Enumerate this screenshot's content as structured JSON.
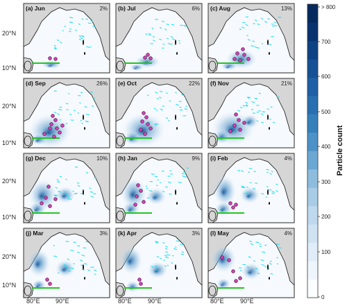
{
  "panels": [
    {
      "label": "(a) Jun",
      "percent": "2%"
    },
    {
      "label": "(b) Jul",
      "percent": "6%"
    },
    {
      "label": "(c) Aug",
      "percent": "13%"
    },
    {
      "label": "(d) Sep",
      "percent": "26%"
    },
    {
      "label": "(e) Oct",
      "percent": "22%"
    },
    {
      "label": "(f) Nov",
      "percent": "21%"
    },
    {
      "label": "(g) Dec",
      "percent": "10%"
    },
    {
      "label": "(h) Jan",
      "percent": "9%"
    },
    {
      "label": "(i) Feb",
      "percent": "4%"
    },
    {
      "label": "(j) Mar",
      "percent": "3%"
    },
    {
      "label": "(k) Apr",
      "percent": "3%"
    },
    {
      "label": "(l) May",
      "percent": "4%"
    }
  ],
  "axes": {
    "y_ticks": [
      "20°N",
      "10°N"
    ],
    "x_ticks": [
      "80°E",
      "90°E"
    ]
  },
  "colorbar": {
    "label": "Particle count",
    "ticks": [
      "> 800",
      "700",
      "600",
      "500",
      "400",
      "300",
      "200",
      "100",
      "0"
    ],
    "colors": [
      "#fbfdff",
      "#eef5fc",
      "#e0edf8",
      "#d0e3f3",
      "#bed8ed",
      "#a8cce6",
      "#8dbcdd",
      "#6aa8d3",
      "#4c92c6",
      "#3580bb",
      "#2a6fb0",
      "#1f5fa3",
      "#155194",
      "#0d4384",
      "#08336f",
      "#062a5e"
    ],
    "accent_land": "#d6d6d6",
    "accent_magenta": "#d63fb8",
    "accent_cyan": "#22e0ef",
    "accent_green": "#22c622"
  }
}
